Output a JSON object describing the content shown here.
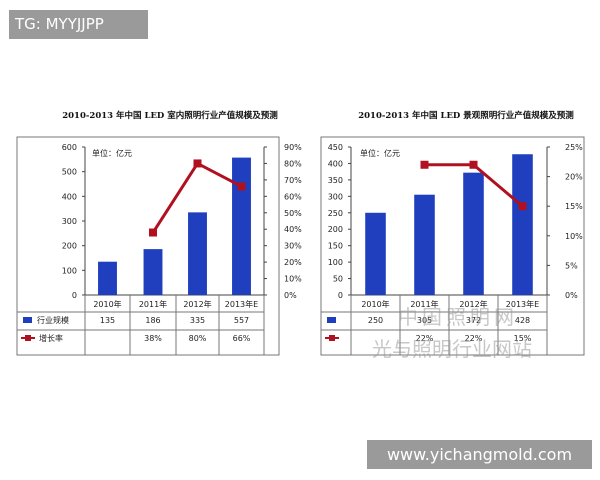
{
  "tag_label": "TG: MYYJJPP",
  "footer_url": "www.yichangmold.com",
  "watermark": {
    "line1": "中国照明网",
    "line2": "光与照明行业网站"
  },
  "colors": {
    "bar": "#1f3fbf",
    "line": "#b01020",
    "grid_border": "#777777"
  },
  "chart_data": [
    {
      "type": "bar",
      "title": "2010-2013 年中国 LED 室内照明行业产值规模及预测",
      "unit_label": "单位：亿元",
      "categories": [
        "2010年",
        "2011年",
        "2012年",
        "2013年E"
      ],
      "series": [
        {
          "name": "行业规模",
          "type": "bar",
          "values": [
            135,
            186,
            335,
            557
          ],
          "table_values": [
            "135",
            "186",
            "335",
            "557"
          ]
        },
        {
          "name": "增长率",
          "type": "line",
          "axis": "right",
          "values": [
            null,
            38,
            80,
            66
          ],
          "table_values": [
            "",
            "38%",
            "80%",
            "66%"
          ]
        }
      ],
      "ylim": [
        0,
        600
      ],
      "y_ticks": [
        "0",
        "100",
        "200",
        "300",
        "400",
        "500",
        "600"
      ],
      "y2lim": [
        0,
        90
      ],
      "y2_ticks": [
        "0%",
        "10%",
        "20%",
        "30%",
        "40%",
        "50%",
        "60%",
        "70%",
        "80%",
        "90%"
      ]
    },
    {
      "type": "bar",
      "title": "2010-2013 年中国 LED 景观照明行业产值规模及预测",
      "unit_label": "单位：亿元",
      "categories": [
        "2010年",
        "2011年",
        "2012年",
        "2013年E"
      ],
      "series": [
        {
          "name": "行业规模",
          "type": "bar",
          "values": [
            250,
            305,
            372,
            428
          ],
          "table_values": [
            "250",
            "305",
            "372",
            "428"
          ]
        },
        {
          "name": "增长率",
          "type": "line",
          "axis": "right",
          "values": [
            null,
            22,
            22,
            15
          ],
          "table_values": [
            "",
            "22%",
            "22%",
            "15%"
          ]
        }
      ],
      "ylim": [
        0,
        450
      ],
      "y_ticks": [
        "0",
        "50",
        "100",
        "150",
        "200",
        "250",
        "300",
        "350",
        "400",
        "450"
      ],
      "y2lim": [
        0,
        25
      ],
      "y2_ticks": [
        "0%",
        "5%",
        "10%",
        "15%",
        "20%",
        "25%"
      ]
    }
  ]
}
